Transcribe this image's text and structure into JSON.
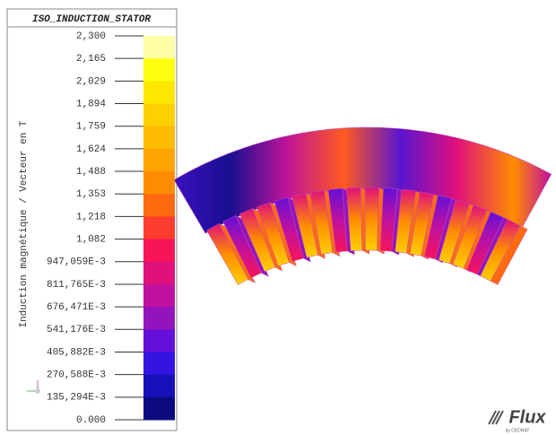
{
  "legend": {
    "title": "ISO_INDUCTION_STATOR",
    "quantity_label": "Induction magnétique / Vecteur en T",
    "levels": [
      "2,300",
      "2,165",
      "2,029",
      "1,894",
      "1,759",
      "1,624",
      "1,488",
      "1,353",
      "1,218",
      "1,082",
      "947,059E-3",
      "811,765E-3",
      "676,471E-3",
      "541,176E-3",
      "405,882E-3",
      "270,588E-3",
      "135,294E-3",
      "0.000"
    ],
    "colors": [
      "#ffffa8",
      "#ffff10",
      "#ffe800",
      "#ffd000",
      "#ffbc00",
      "#ffa400",
      "#ff8c00",
      "#ff6a10",
      "#ff3c30",
      "#f81458",
      "#e0107c",
      "#c010a0",
      "#9414bc",
      "#6410d8",
      "#3414e0",
      "#1810b8",
      "#0c0a80"
    ]
  },
  "logo": {
    "name": "Flux",
    "subtitle": "by CEDRAT"
  }
}
